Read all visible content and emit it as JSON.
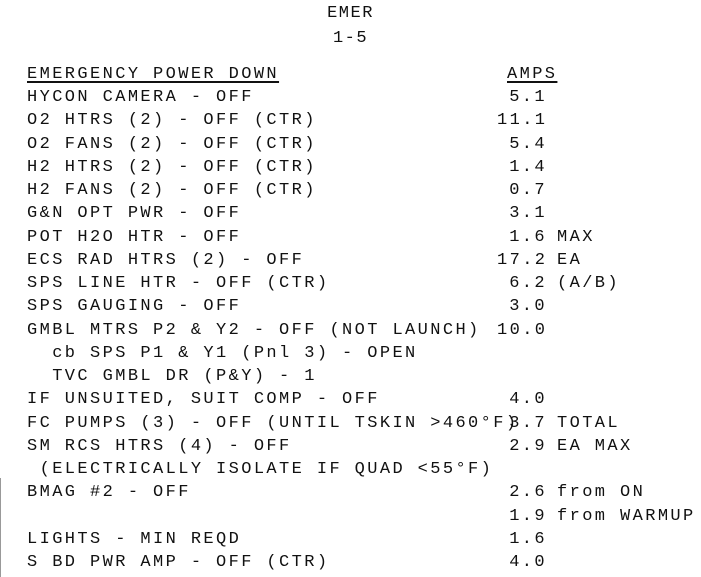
{
  "header": {
    "section": "EMER",
    "page": "1-5"
  },
  "table": {
    "title": "EMERGENCY POWER DOWN",
    "amps_header": "AMPS",
    "rows": [
      {
        "item": "HYCON CAMERA - OFF",
        "amps": "5.1",
        "note": ""
      },
      {
        "item": "O2 HTRS (2) - OFF (CTR)",
        "amps": "11.1",
        "note": ""
      },
      {
        "item": "O2 FANS (2) - OFF (CTR)",
        "amps": "5.4",
        "note": ""
      },
      {
        "item": "H2 HTRS (2) - OFF (CTR)",
        "amps": "1.4",
        "note": ""
      },
      {
        "item": "H2 FANS (2) - OFF (CTR)",
        "amps": "0.7",
        "note": ""
      },
      {
        "item": "G&N OPT PWR - OFF",
        "amps": "3.1",
        "note": ""
      },
      {
        "item": "POT H2O HTR - OFF",
        "amps": "1.6",
        "note": "MAX"
      },
      {
        "item": "ECS RAD HTRS (2) - OFF",
        "amps": "17.2",
        "note": "EA"
      },
      {
        "item": "SPS LINE HTR - OFF (CTR)",
        "amps": "6.2",
        "note": "(A/B)"
      },
      {
        "item": "SPS GAUGING - OFF",
        "amps": "3.0",
        "note": ""
      },
      {
        "item": "GMBL MTRS P2 & Y2 - OFF (NOT LAUNCH)",
        "amps": "10.0",
        "note": ""
      },
      {
        "item": "  cb SPS P1 & Y1 (Pnl 3) - OPEN",
        "amps": "",
        "note": ""
      },
      {
        "item": "  TVC GMBL DR (P&Y) - 1",
        "amps": "",
        "note": ""
      },
      {
        "item": "IF UNSUITED, SUIT COMP - OFF",
        "amps": "4.0",
        "note": ""
      },
      {
        "item": "FC PUMPS (3) - OFF (UNTIL TSKIN >460°F)",
        "amps": "3.7",
        "note": "TOTAL"
      },
      {
        "item": "SM RCS HTRS (4) - OFF",
        "amps": "2.9",
        "note": "EA MAX"
      },
      {
        "item": " (ELECTRICALLY ISOLATE IF QUAD <55°F)",
        "amps": "",
        "note": ""
      },
      {
        "item": "BMAG #2 - OFF",
        "amps": "2.6",
        "note": "from ON"
      },
      {
        "item": "",
        "amps": "1.9",
        "note": "from WARMUP"
      },
      {
        "item": "LIGHTS - MIN REQD",
        "amps": "1.6",
        "note": ""
      },
      {
        "item": "S BD PWR AMP - OFF (CTR)",
        "amps": "4.0",
        "note": ""
      }
    ]
  }
}
